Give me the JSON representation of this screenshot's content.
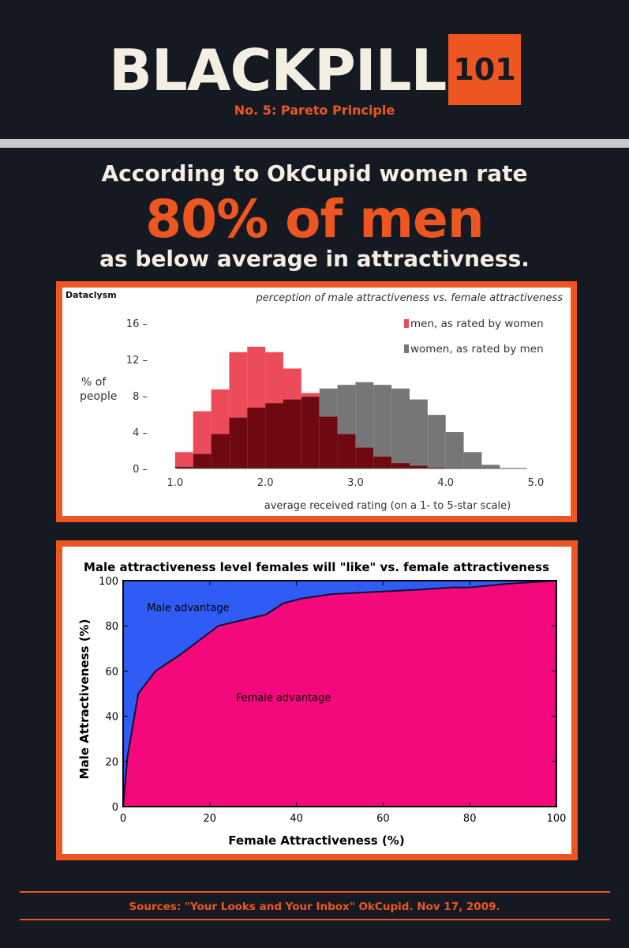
{
  "header": {
    "logo_word": "BLACKPILL",
    "logo_badge": "101",
    "subtitle": "No. 5: Pareto Principle"
  },
  "headline": {
    "line1": "According to OkCupid women rate",
    "line2": "80% of men",
    "line3": "as below average in attractivness."
  },
  "colors": {
    "background": "#151a22",
    "accent": "#ee5621",
    "cream": "#f3efe2",
    "men_bar": "#ec4c5a",
    "women_bar": "#767676",
    "overlap_bar": "#6e0811",
    "male_region": "#2f5cf5",
    "female_region": "#f4097d"
  },
  "footer": {
    "source": "Sources: \"Your Looks and Your Inbox\" OkCupid. Nov 17, 2009."
  },
  "chart_data": [
    {
      "type": "bar",
      "brand": "Dataclysm",
      "title": "perception of male attractiveness vs. female attractiveness",
      "xlabel": "average received rating (on a 1- to 5-star scale)",
      "ylabel": "% of people",
      "ylabel_lines": [
        "% of",
        "people"
      ],
      "xlim": [
        0.8,
        5.0
      ],
      "ylim": [
        0,
        16
      ],
      "x_ticks": [
        1.0,
        2.0,
        3.0,
        4.0,
        5.0
      ],
      "x_tick_labels": [
        "1.0",
        "2.0",
        "3.0",
        "4.0",
        "5.0"
      ],
      "y_ticks": [
        0,
        4,
        8,
        12,
        16
      ],
      "y_tick_labels": [
        "0 –",
        "4 –",
        "8 –",
        "12 –",
        "16 –"
      ],
      "bin_width": 0.2,
      "legend_position": "top-right",
      "bins": [
        1.1,
        1.3,
        1.5,
        1.7,
        1.9,
        2.1,
        2.3,
        2.5,
        2.7,
        2.9,
        3.1,
        3.3,
        3.5,
        3.7,
        3.9,
        4.1,
        4.3,
        4.5
      ],
      "series": [
        {
          "name": "men, as rated by women",
          "values": [
            1.8,
            6.3,
            8.7,
            12.8,
            13.4,
            12.8,
            11.0,
            8.3,
            5.7,
            3.8,
            2.3,
            1.3,
            0.6,
            0.3,
            0.1,
            0.0,
            0.0,
            0.0
          ]
        },
        {
          "name": "women, as rated by men",
          "values": [
            0.2,
            1.6,
            3.8,
            5.6,
            6.7,
            7.2,
            7.6,
            7.9,
            8.8,
            9.2,
            9.5,
            9.2,
            8.8,
            7.6,
            5.9,
            4.0,
            1.8,
            0.4
          ]
        }
      ]
    },
    {
      "type": "area",
      "title": "Male attractiveness level females will \"like\" vs. female attractiveness",
      "xlabel": "Female Attractiveness (%)",
      "ylabel": "Male Attractiveness (%)",
      "xlim": [
        0,
        100
      ],
      "ylim": [
        0,
        100
      ],
      "x_ticks": [
        0,
        20,
        40,
        60,
        80,
        100
      ],
      "x_tick_labels": [
        "0",
        "20",
        "40",
        "60",
        "80",
        "100"
      ],
      "y_ticks": [
        0,
        20,
        40,
        60,
        80,
        100
      ],
      "y_tick_labels": [
        "0",
        "20",
        "40",
        "60",
        "80",
        "100"
      ],
      "upper_region_label": "Male advantage",
      "lower_region_label": "Female advantage",
      "x": [
        0,
        1,
        3.5,
        7.5,
        13,
        22,
        33,
        37,
        41,
        48,
        58,
        68,
        76,
        80,
        88,
        100
      ],
      "y": [
        0,
        22,
        50,
        60,
        67,
        80,
        85,
        90,
        92,
        94,
        95,
        96,
        97,
        97,
        98.5,
        100
      ]
    }
  ]
}
